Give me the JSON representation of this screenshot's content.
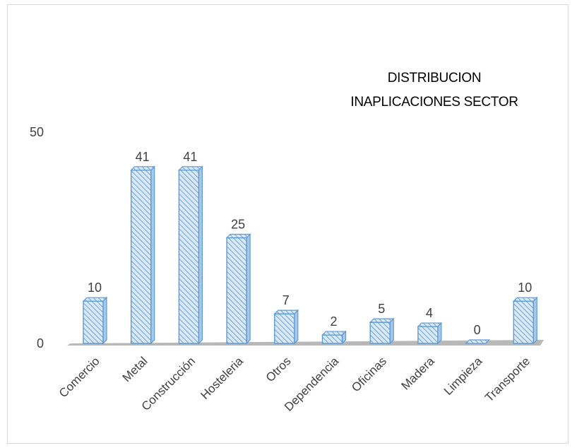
{
  "chart_data": {
    "type": "bar",
    "title_lines": [
      "DISTRIBUCION",
      "INAPLICACIONES SECTOR"
    ],
    "categories": [
      "Comercio",
      "Metal",
      "Construcción",
      "Hosteleria",
      "Otros",
      "Dependencia",
      "Oficinas",
      "Madera",
      "Limpieza",
      "Transporte"
    ],
    "values": [
      10,
      41,
      41,
      25,
      7,
      2,
      5,
      4,
      0,
      10
    ],
    "yticks": [
      "0",
      "50"
    ],
    "ylim": [
      0,
      50
    ],
    "data_labels": true,
    "grid": false,
    "legend": "none",
    "colors": {
      "bar_fill": "#dbe9f7",
      "bar_hatch": "#5b9bd5",
      "bar_edge": "#5b9bd5",
      "floor": "#b8b8b8",
      "label_text": "#404040"
    }
  }
}
